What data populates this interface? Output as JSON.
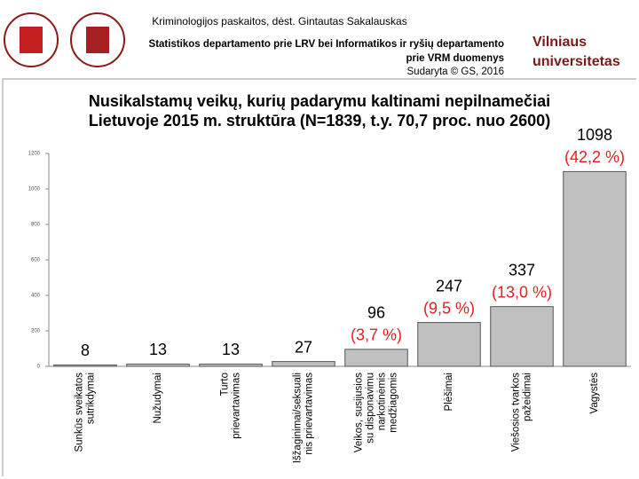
{
  "header": {
    "course": "Kriminologijos paskaitos, dėst. Gintautas Sakalauskas",
    "source_lines": [
      "Statistikos departamento prie LRV bei Informatikos ir ryšių departamento",
      "prie VRM duomenys",
      "Sudaryta © GS, 2016"
    ],
    "brand": [
      "Vilniaus",
      "universitetas"
    ]
  },
  "chart_data": {
    "type": "bar",
    "title": [
      "Nusikalstamų veikų, kurių padarymu kaltinami nepilnamečiai",
      "Lietuvoje 2015 m. struktūra (N=1839, t.y. 70,7 proc. nuo 2600)"
    ],
    "categories": [
      [
        "Sunkūs sveikatos",
        "sutrikdymai"
      ],
      [
        "Nužudymai"
      ],
      [
        "Turto",
        "prievartavimas"
      ],
      [
        "Išžaginimai/seksuali",
        "nis prievartavimas"
      ],
      [
        "Veikos, susijusios",
        "su disponavimu",
        "narkotinėmis",
        "medžiagomis"
      ],
      [
        "Plėšimai"
      ],
      [
        "Viešosios tvarkos",
        "pažeidimai"
      ],
      [
        "Vagystės"
      ]
    ],
    "values": [
      8,
      13,
      13,
      27,
      96,
      247,
      337,
      1098
    ],
    "percent_labels": [
      null,
      null,
      null,
      null,
      "(3,7 %)",
      "(9,5 %)",
      "(13,0 %)",
      "(42,2 %)"
    ],
    "color": "#c0c0c0",
    "percent_color": "#e02020",
    "ylim": [
      0,
      1200
    ],
    "yticks": [
      0,
      200,
      400,
      600,
      800,
      1000,
      1200
    ]
  }
}
